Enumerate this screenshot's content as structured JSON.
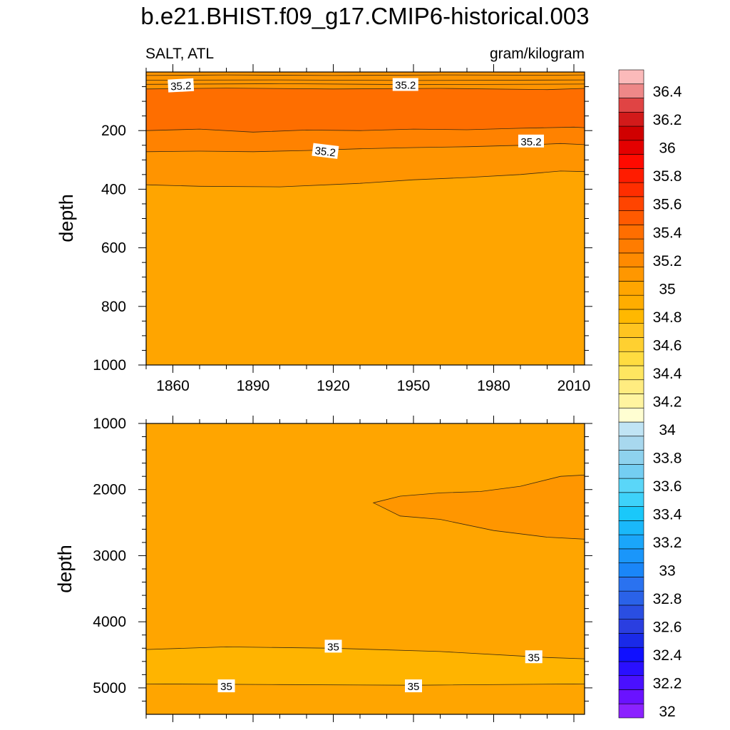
{
  "chart_data": [
    {
      "type": "contour",
      "title": "b.e21.BHIST.f09_g17.CMIP6-historical.003",
      "left_label": "SALT, ATL",
      "right_label": "gram/kilogram",
      "xlabel": "",
      "ylabel": "depth",
      "xlim": [
        1850,
        2014
      ],
      "ylim": [
        1000,
        0
      ],
      "x_ticks": [
        1860,
        1890,
        1920,
        1950,
        1980,
        2010
      ],
      "x_tick_labels": [
        "1860",
        "1890",
        "1920",
        "1950",
        "1980",
        "2010"
      ],
      "y_ticks": [
        200,
        400,
        600,
        800,
        1000
      ],
      "y_tick_labels": [
        "200",
        "400",
        "600",
        "800",
        "1000"
      ],
      "bands": [
        {
          "from_depth": 0,
          "to_depth": 55,
          "value": 35.15,
          "color": "#ff9400"
        },
        {
          "from_depth": 55,
          "to_depth": 200,
          "value": 35.35,
          "color": "#fe6e00"
        },
        {
          "from_depth": 200,
          "to_depth": 270,
          "value": 35.25,
          "color": "#ff8200"
        },
        {
          "from_depth": 270,
          "to_depth": 380,
          "value": 35.1,
          "color": "#ff9400"
        },
        {
          "from_depth": 380,
          "to_depth": 1000,
          "value": 35.0,
          "color": "#ffa500"
        }
      ],
      "contour_lines": [
        {
          "points": [
            [
              1850,
              12
            ],
            [
              1880,
              10
            ],
            [
              1920,
              12
            ],
            [
              1960,
              10
            ],
            [
              2000,
              11
            ],
            [
              2014,
              10
            ]
          ]
        },
        {
          "points": [
            [
              1850,
              28
            ],
            [
              1900,
              27
            ],
            [
              1950,
              29
            ],
            [
              2014,
              27
            ]
          ]
        },
        {
          "points": [
            [
              1850,
              42
            ],
            [
              1900,
              40
            ],
            [
              1950,
              43
            ],
            [
              2014,
              41
            ]
          ]
        },
        {
          "points": [
            [
              1850,
              58
            ],
            [
              1880,
              55
            ],
            [
              1920,
              58
            ],
            [
              1960,
              56
            ],
            [
              2000,
              60
            ],
            [
              2014,
              56
            ]
          ]
        },
        {
          "points": [
            [
              1850,
              200
            ],
            [
              1870,
              195
            ],
            [
              1890,
              205
            ],
            [
              1910,
              198
            ],
            [
              1930,
              200
            ],
            [
              1950,
              195
            ],
            [
              1970,
              197
            ],
            [
              1990,
              192
            ],
            [
              2000,
              190
            ],
            [
              2010,
              188
            ],
            [
              2014,
              190
            ]
          ]
        },
        {
          "points": [
            [
              1850,
              272
            ],
            [
              1870,
              270
            ],
            [
              1890,
              272
            ],
            [
              1910,
              268
            ],
            [
              1930,
              262
            ],
            [
              1950,
              258
            ],
            [
              1970,
              255
            ],
            [
              1990,
              250
            ],
            [
              2005,
              244
            ],
            [
              2014,
              248
            ]
          ]
        },
        {
          "points": [
            [
              1850,
              385
            ],
            [
              1870,
              390
            ],
            [
              1900,
              392
            ],
            [
              1930,
              380
            ],
            [
              1950,
              368
            ],
            [
              1970,
              360
            ],
            [
              1990,
              350
            ],
            [
              2005,
              338
            ],
            [
              2014,
              340
            ]
          ]
        }
      ],
      "contour_labels": [
        {
          "x": 1863,
          "y": 48,
          "text": "35.2",
          "angle": -3
        },
        {
          "x": 1947,
          "y": 45,
          "text": "35.2",
          "angle": 0
        },
        {
          "x": 1917,
          "y": 272,
          "text": "35.2",
          "angle": 7
        },
        {
          "x": 1994,
          "y": 238,
          "text": "35.2",
          "angle": 0
        }
      ]
    },
    {
      "type": "contour",
      "xlabel": "",
      "ylabel": "depth",
      "xlim": [
        1850,
        2014
      ],
      "ylim": [
        5400,
        1000
      ],
      "x_ticks": [
        1860,
        1890,
        1920,
        1950,
        1980,
        2010
      ],
      "y_ticks": [
        1000,
        2000,
        3000,
        4000,
        5000
      ],
      "y_tick_labels": [
        "1000",
        "2000",
        "3000",
        "4000",
        "5000"
      ],
      "background": {
        "value": 35.05,
        "color": "#ffa500"
      },
      "regions": [
        {
          "value": 35.1,
          "color": "#ff9600",
          "points": [
            [
              1935,
              2200
            ],
            [
              1945,
              2100
            ],
            [
              1960,
              2050
            ],
            [
              1975,
              2030
            ],
            [
              1990,
              1950
            ],
            [
              2005,
              1800
            ],
            [
              2014,
              1780
            ],
            [
              2014,
              2750
            ],
            [
              2000,
              2720
            ],
            [
              1980,
              2620
            ],
            [
              1960,
              2450
            ],
            [
              1945,
              2400
            ],
            [
              1935,
              2200
            ]
          ]
        },
        {
          "value": 34.95,
          "color": "#ffb400",
          "points": [
            [
              1850,
              4420
            ],
            [
              1880,
              4380
            ],
            [
              1920,
              4400
            ],
            [
              1960,
              4450
            ],
            [
              2000,
              4540
            ],
            [
              2014,
              4560
            ],
            [
              2014,
              4940
            ],
            [
              1950,
              4960
            ],
            [
              1900,
              4950
            ],
            [
              1850,
              4940
            ]
          ]
        }
      ],
      "contour_labels": [
        {
          "x": 1920,
          "y": 4380,
          "text": "35",
          "angle": 0
        },
        {
          "x": 1995,
          "y": 4540,
          "text": "35",
          "angle": 0
        },
        {
          "x": 1880,
          "y": 4980,
          "text": "35",
          "angle": 0
        },
        {
          "x": 1950,
          "y": 4980,
          "text": "35",
          "angle": 0
        }
      ]
    },
    {
      "type": "colorbar",
      "levels": [
        32,
        32.1,
        32.2,
        32.3,
        32.4,
        32.5,
        32.6,
        32.7,
        32.8,
        32.9,
        33,
        33.1,
        33.2,
        33.3,
        33.4,
        33.5,
        33.6,
        33.7,
        33.8,
        33.9,
        34,
        34.1,
        34.2,
        34.3,
        34.4,
        34.5,
        34.6,
        34.7,
        34.8,
        34.9,
        35,
        35.1,
        35.2,
        35.3,
        35.4,
        35.5,
        35.6,
        35.7,
        35.8,
        35.9,
        36,
        36.1,
        36.2,
        36.3,
        36.4,
        36.5
      ],
      "labels": [
        "32",
        "32.2",
        "32.4",
        "32.6",
        "32.8",
        "33",
        "33.2",
        "33.4",
        "33.6",
        "33.8",
        "34",
        "34.2",
        "34.4",
        "34.6",
        "34.8",
        "35",
        "35.2",
        "35.4",
        "35.6",
        "35.8",
        "36",
        "36.2",
        "36.4"
      ],
      "colors": [
        "#8b22ff",
        "#6a12ff",
        "#4a10ff",
        "#2a10ff",
        "#1010ff",
        "#1a2ae8",
        "#2a3ee0",
        "#2a4ee2",
        "#2a62e8",
        "#2a72f0",
        "#1a86f8",
        "#1a96fa",
        "#1aa6fa",
        "#1ab8fa",
        "#1ac8fa",
        "#3ed2fa",
        "#5ad6f8",
        "#74cef2",
        "#8ed2ee",
        "#a8d8ee",
        "#c0e4f4",
        "#fffed2",
        "#fff4a0",
        "#ffec80",
        "#ffe660",
        "#ffdc40",
        "#ffd030",
        "#ffc420",
        "#ffb800",
        "#ffad00",
        "#ffa500",
        "#ff9700",
        "#ff8a00",
        "#ff7c00",
        "#ff6e00",
        "#ff5a00",
        "#ff4400",
        "#ff2e00",
        "#ff1c00",
        "#ff0a00",
        "#e40000",
        "#d00000",
        "#d21a1a",
        "#e04444",
        "#ee8888",
        "#fbbaba"
      ]
    }
  ]
}
